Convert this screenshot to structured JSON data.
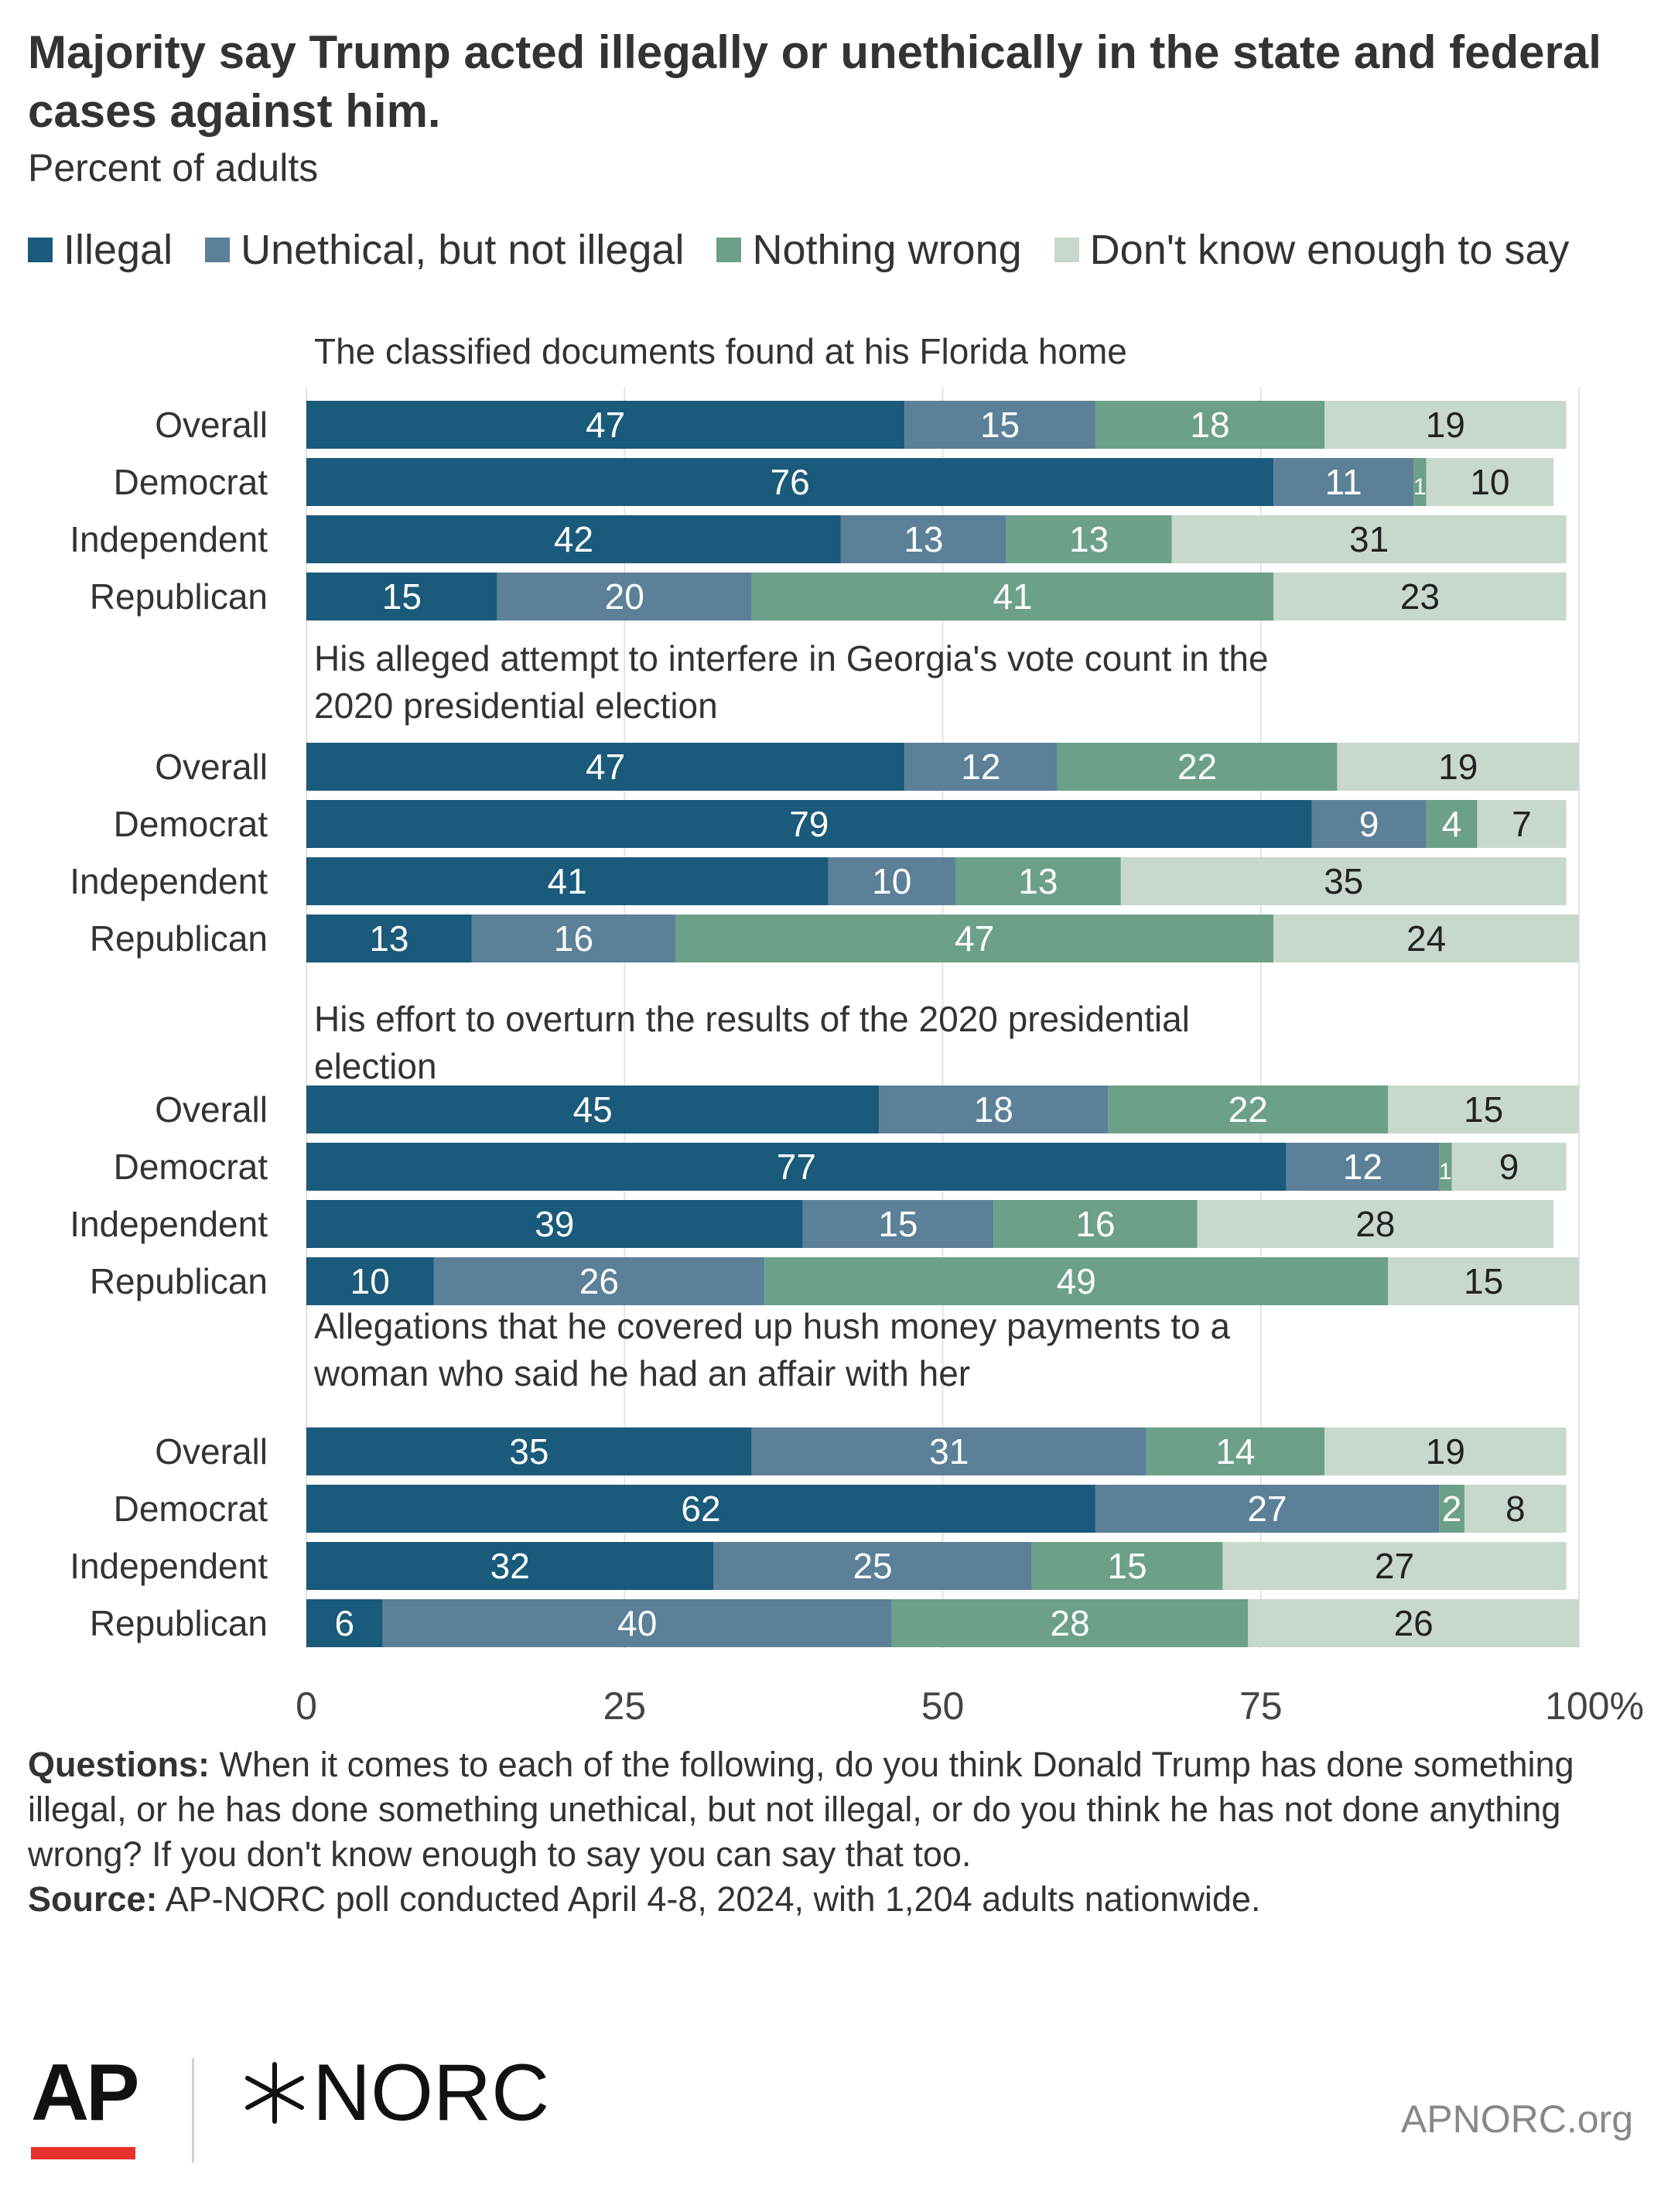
{
  "title": "Majority say Trump acted illegally or unethically in the state and federal cases against him.",
  "subtitle": "Percent of adults",
  "legend": [
    {
      "label": "Illegal",
      "color": "#1a5a7a"
    },
    {
      "label": "Unethical, but not illegal",
      "color": "#5b8098"
    },
    {
      "label": "Nothing wrong",
      "color": "#6ca088"
    },
    {
      "label": "Don't know enough to say",
      "color": "#c9d8cc"
    }
  ],
  "chart_data": {
    "type": "bar",
    "orientation": "horizontal",
    "stacked": true,
    "xlim": [
      0,
      100
    ],
    "x_ticks": [
      "0",
      "25",
      "50",
      "75",
      "100%"
    ],
    "grid": true,
    "legend_position": "top",
    "series_names": [
      "Illegal",
      "Unethical, but not illegal",
      "Nothing wrong",
      "Don't know enough to say"
    ],
    "groups": [
      {
        "title": "The classified documents found at his Florida home",
        "rows": [
          {
            "label": "Overall",
            "values": [
              47,
              15,
              18,
              19
            ]
          },
          {
            "label": "Democrat",
            "values": [
              76,
              11,
              1,
              10
            ]
          },
          {
            "label": "Independent",
            "values": [
              42,
              13,
              13,
              31
            ]
          },
          {
            "label": "Republican",
            "values": [
              15,
              20,
              41,
              23
            ]
          }
        ]
      },
      {
        "title": "His alleged attempt to interfere in Georgia's vote count in the 2020 presidential election",
        "rows": [
          {
            "label": "Overall",
            "values": [
              47,
              12,
              22,
              19
            ]
          },
          {
            "label": "Democrat",
            "values": [
              79,
              9,
              4,
              7
            ]
          },
          {
            "label": "Independent",
            "values": [
              41,
              10,
              13,
              35
            ]
          },
          {
            "label": "Republican",
            "values": [
              13,
              16,
              47,
              24
            ]
          }
        ]
      },
      {
        "title": "His effort to overturn the results of the 2020 presidential election",
        "rows": [
          {
            "label": "Overall",
            "values": [
              45,
              18,
              22,
              15
            ]
          },
          {
            "label": "Democrat",
            "values": [
              77,
              12,
              1,
              9
            ]
          },
          {
            "label": "Independent",
            "values": [
              39,
              15,
              16,
              28
            ]
          },
          {
            "label": "Republican",
            "values": [
              10,
              26,
              49,
              15
            ]
          }
        ]
      },
      {
        "title": "Allegations that he covered up hush money payments to a woman who said he had an affair with her",
        "rows": [
          {
            "label": "Overall",
            "values": [
              35,
              31,
              14,
              19
            ]
          },
          {
            "label": "Democrat",
            "values": [
              62,
              27,
              2,
              8
            ]
          },
          {
            "label": "Independent",
            "values": [
              32,
              25,
              15,
              27
            ]
          },
          {
            "label": "Republican",
            "values": [
              6,
              40,
              28,
              26
            ]
          }
        ]
      }
    ]
  },
  "notes": {
    "questions_label": "Questions:",
    "questions_text": " When it comes to each of the following, do you think Donald Trump has done something illegal, or he has done something unethical, but not illegal, or do you think he has not done anything wrong? If you don't know enough to say you can say that too.",
    "source_label": "Source:",
    "source_text": " AP-NORC poll conducted April 4-8, 2024, with 1,204 adults nationwide."
  },
  "footer": {
    "ap_logo": "AP",
    "norc_logo": "NORC",
    "site": "APNORC.org"
  }
}
